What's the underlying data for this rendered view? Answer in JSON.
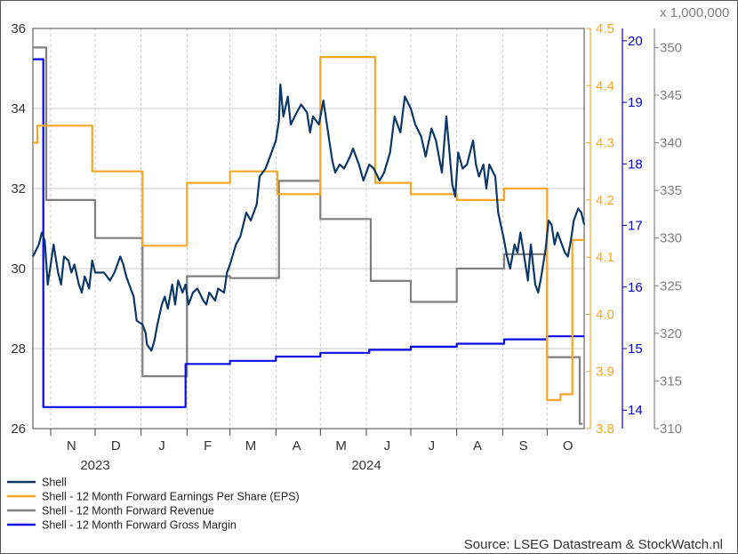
{
  "chart_data": {
    "type": "line",
    "source": "Source: LSEG Datastream & StockWatch.nl",
    "axis_multiplier": "x 1,000,000",
    "x_month_labels": [
      "N",
      "D",
      "J",
      "F",
      "M",
      "A",
      "M",
      "J",
      "J",
      "A",
      "S",
      "O"
    ],
    "x_year_labels": [
      "2023",
      "2024"
    ],
    "x_range": [
      "2023-10-20",
      "2024-10-26"
    ],
    "axes": {
      "price": {
        "min": 26,
        "max": 36,
        "ticks": [
          26,
          28,
          30,
          32,
          34,
          36
        ],
        "color": "#333333"
      },
      "eps": {
        "min": 3.8,
        "max": 4.5,
        "ticks": [
          "3.8",
          "3.9",
          "4.0",
          "4.1",
          "4.2",
          "4.3",
          "4.4",
          "4.5"
        ],
        "color": "#f5a623"
      },
      "margin": {
        "min": 13.7,
        "max": 20.2,
        "ticks": [
          14,
          15,
          16,
          17,
          18,
          19,
          20
        ],
        "color": "#0000cc"
      },
      "revenue": {
        "min": 310,
        "max": 352,
        "ticks": [
          310,
          315,
          320,
          325,
          330,
          335,
          340,
          345,
          350
        ],
        "color": "#7f7f7f"
      }
    },
    "series": [
      {
        "name": "Shell",
        "color": "#0c3766",
        "axis": "price",
        "points": [
          [
            "2023-10-20",
            30.3
          ],
          [
            "2023-10-24",
            30.6
          ],
          [
            "2023-10-26",
            30.9
          ],
          [
            "2023-10-28",
            30.7
          ],
          [
            "2023-10-30",
            29.6
          ],
          [
            "2023-11-01",
            30.1
          ],
          [
            "2023-11-03",
            30.6
          ],
          [
            "2023-11-06",
            29.9
          ],
          [
            "2023-11-08",
            29.6
          ],
          [
            "2023-11-10",
            30.3
          ],
          [
            "2023-11-13",
            30.2
          ],
          [
            "2023-11-15",
            29.9
          ],
          [
            "2023-11-17",
            30.1
          ],
          [
            "2023-11-20",
            29.6
          ],
          [
            "2023-11-22",
            29.4
          ],
          [
            "2023-11-24",
            29.8
          ],
          [
            "2023-11-27",
            29.5
          ],
          [
            "2023-11-29",
            30.2
          ],
          [
            "2023-12-01",
            29.9
          ],
          [
            "2023-12-04",
            29.9
          ],
          [
            "2023-12-07",
            29.9
          ],
          [
            "2023-12-11",
            29.7
          ],
          [
            "2023-12-14",
            29.9
          ],
          [
            "2023-12-18",
            30.3
          ],
          [
            "2023-12-20",
            30.1
          ],
          [
            "2023-12-22",
            29.8
          ],
          [
            "2023-12-27",
            29.3
          ],
          [
            "2023-12-29",
            28.7
          ],
          [
            "2024-01-02",
            28.6
          ],
          [
            "2024-01-04",
            28.4
          ],
          [
            "2024-01-05",
            28.1
          ],
          [
            "2024-01-08",
            27.95
          ],
          [
            "2024-01-10",
            28.2
          ],
          [
            "2024-01-12",
            28.6
          ],
          [
            "2024-01-15",
            29.1
          ],
          [
            "2024-01-17",
            29.3
          ],
          [
            "2024-01-19",
            29.0
          ],
          [
            "2024-01-22",
            29.6
          ],
          [
            "2024-01-24",
            29.1
          ],
          [
            "2024-01-26",
            29.7
          ],
          [
            "2024-01-29",
            29.4
          ],
          [
            "2024-01-31",
            29.6
          ],
          [
            "2024-02-02",
            29.1
          ],
          [
            "2024-02-05",
            29.4
          ],
          [
            "2024-02-08",
            29.5
          ],
          [
            "2024-02-12",
            29.2
          ],
          [
            "2024-02-14",
            29.1
          ],
          [
            "2024-02-16",
            29.4
          ],
          [
            "2024-02-20",
            29.2
          ],
          [
            "2024-02-22",
            29.5
          ],
          [
            "2024-02-26",
            29.4
          ],
          [
            "2024-02-28",
            29.9
          ],
          [
            "2024-03-01",
            30.1
          ],
          [
            "2024-03-05",
            30.6
          ],
          [
            "2024-03-08",
            30.8
          ],
          [
            "2024-03-12",
            31.4
          ],
          [
            "2024-03-15",
            31.2
          ],
          [
            "2024-03-19",
            31.6
          ],
          [
            "2024-03-21",
            32.3
          ],
          [
            "2024-03-25",
            32.5
          ],
          [
            "2024-03-28",
            32.8
          ],
          [
            "2024-04-01",
            33.2
          ],
          [
            "2024-04-03",
            33.7
          ],
          [
            "2024-04-04",
            34.6
          ],
          [
            "2024-04-06",
            33.8
          ],
          [
            "2024-04-09",
            34.3
          ],
          [
            "2024-04-11",
            33.6
          ],
          [
            "2024-04-15",
            33.9
          ],
          [
            "2024-04-18",
            34.1
          ],
          [
            "2024-04-22",
            33.9
          ],
          [
            "2024-04-24",
            33.4
          ],
          [
            "2024-04-26",
            33.8
          ],
          [
            "2024-04-30",
            33.6
          ],
          [
            "2024-05-03",
            34.2
          ],
          [
            "2024-05-05",
            33.7
          ],
          [
            "2024-05-07",
            33.2
          ],
          [
            "2024-05-09",
            32.7
          ],
          [
            "2024-05-11",
            32.4
          ],
          [
            "2024-05-14",
            32.6
          ],
          [
            "2024-05-17",
            32.5
          ],
          [
            "2024-05-21",
            32.8
          ],
          [
            "2024-05-23",
            33.0
          ],
          [
            "2024-05-27",
            32.6
          ],
          [
            "2024-05-30",
            32.2
          ],
          [
            "2024-06-03",
            32.6
          ],
          [
            "2024-06-06",
            32.5
          ],
          [
            "2024-06-10",
            32.2
          ],
          [
            "2024-06-13",
            32.4
          ],
          [
            "2024-06-17",
            32.9
          ],
          [
            "2024-06-20",
            33.8
          ],
          [
            "2024-06-24",
            33.4
          ],
          [
            "2024-06-27",
            34.3
          ],
          [
            "2024-07-01",
            34.0
          ],
          [
            "2024-07-04",
            33.6
          ],
          [
            "2024-07-08",
            33.3
          ],
          [
            "2024-07-11",
            32.8
          ],
          [
            "2024-07-15",
            33.5
          ],
          [
            "2024-07-18",
            33.2
          ],
          [
            "2024-07-22",
            32.4
          ],
          [
            "2024-07-25",
            33.8
          ],
          [
            "2024-07-29",
            32.1
          ],
          [
            "2024-07-31",
            31.8
          ],
          [
            "2024-08-02",
            32.9
          ],
          [
            "2024-08-05",
            32.5
          ],
          [
            "2024-08-08",
            32.6
          ],
          [
            "2024-08-12",
            33.2
          ],
          [
            "2024-08-14",
            32.6
          ],
          [
            "2024-08-16",
            32.3
          ],
          [
            "2024-08-19",
            32.6
          ],
          [
            "2024-08-21",
            32.0
          ],
          [
            "2024-08-23",
            32.6
          ],
          [
            "2024-08-27",
            32.3
          ],
          [
            "2024-08-29",
            31.4
          ],
          [
            "2024-09-02",
            30.7
          ],
          [
            "2024-09-04",
            30.3
          ],
          [
            "2024-09-06",
            30.0
          ],
          [
            "2024-09-09",
            30.6
          ],
          [
            "2024-09-11",
            30.4
          ],
          [
            "2024-09-13",
            30.9
          ],
          [
            "2024-09-16",
            30.2
          ],
          [
            "2024-09-18",
            29.7
          ],
          [
            "2024-09-20",
            30.6
          ],
          [
            "2024-09-23",
            29.6
          ],
          [
            "2024-09-25",
            29.4
          ],
          [
            "2024-09-27",
            29.8
          ],
          [
            "2024-09-30",
            30.5
          ],
          [
            "2024-10-02",
            31.2
          ],
          [
            "2024-10-04",
            31.1
          ],
          [
            "2024-10-06",
            30.6
          ],
          [
            "2024-10-08",
            30.9
          ],
          [
            "2024-10-10",
            30.7
          ],
          [
            "2024-10-13",
            30.4
          ],
          [
            "2024-10-15",
            30.3
          ],
          [
            "2024-10-17",
            30.7
          ],
          [
            "2024-10-19",
            31.2
          ],
          [
            "2024-10-22",
            31.5
          ],
          [
            "2024-10-24",
            31.4
          ],
          [
            "2024-10-26",
            31.1
          ]
        ]
      },
      {
        "name": "Shell - 12 Month Forward Earnings Per Share (EPS)",
        "color": "#f5a623",
        "axis": "eps",
        "points": [
          [
            "2023-10-20",
            4.3
          ],
          [
            "2023-10-23",
            4.3
          ],
          [
            "2023-10-23",
            4.33
          ],
          [
            "2023-11-29",
            4.33
          ],
          [
            "2023-11-29",
            4.25
          ],
          [
            "2024-01-02",
            4.25
          ],
          [
            "2024-01-02",
            4.12
          ],
          [
            "2024-02-01",
            4.12
          ],
          [
            "2024-02-01",
            4.23
          ],
          [
            "2024-03-01",
            4.23
          ],
          [
            "2024-03-01",
            4.25
          ],
          [
            "2024-04-02",
            4.25
          ],
          [
            "2024-04-02",
            4.21
          ],
          [
            "2024-05-01",
            4.21
          ],
          [
            "2024-05-01",
            4.45
          ],
          [
            "2024-06-07",
            4.45
          ],
          [
            "2024-06-07",
            4.23
          ],
          [
            "2024-07-01",
            4.23
          ],
          [
            "2024-07-01",
            4.21
          ],
          [
            "2024-08-01",
            4.21
          ],
          [
            "2024-08-01",
            4.2
          ],
          [
            "2024-09-02",
            4.2
          ],
          [
            "2024-09-02",
            4.22
          ],
          [
            "2024-10-01",
            4.22
          ],
          [
            "2024-10-01",
            3.85
          ],
          [
            "2024-10-10",
            3.85
          ],
          [
            "2024-10-10",
            3.86
          ],
          [
            "2024-10-18",
            3.86
          ],
          [
            "2024-10-18",
            4.13
          ],
          [
            "2024-10-26",
            4.13
          ]
        ]
      },
      {
        "name": "Shell - 12 Month Forward Revenue",
        "color": "#7f7f7f",
        "axis": "revenue",
        "points": [
          [
            "2023-10-20",
            350
          ],
          [
            "2023-10-29",
            350
          ],
          [
            "2023-10-29",
            334
          ],
          [
            "2023-12-01",
            334
          ],
          [
            "2023-12-01",
            330
          ],
          [
            "2024-01-02",
            330
          ],
          [
            "2024-01-02",
            315.5
          ],
          [
            "2024-02-01",
            315.5
          ],
          [
            "2024-02-01",
            326
          ],
          [
            "2024-03-01",
            326
          ],
          [
            "2024-03-01",
            325.8
          ],
          [
            "2024-04-03",
            325.8
          ],
          [
            "2024-04-03",
            336
          ],
          [
            "2024-05-01",
            336
          ],
          [
            "2024-05-01",
            332
          ],
          [
            "2024-06-04",
            332
          ],
          [
            "2024-06-04",
            325.5
          ],
          [
            "2024-07-01",
            325.5
          ],
          [
            "2024-07-01",
            323.3
          ],
          [
            "2024-08-01",
            323.3
          ],
          [
            "2024-08-01",
            326.8
          ],
          [
            "2024-09-02",
            326.8
          ],
          [
            "2024-09-02",
            328.3
          ],
          [
            "2024-10-01",
            328.3
          ],
          [
            "2024-10-01",
            317.5
          ],
          [
            "2024-10-23",
            317.5
          ],
          [
            "2024-10-23",
            310.5
          ],
          [
            "2024-10-25",
            310.5
          ]
        ]
      },
      {
        "name": "Shell - 12 Month Forward Gross Margin",
        "color": "#0a0ae6",
        "axis": "margin",
        "points": [
          [
            "2023-10-20",
            19.7
          ],
          [
            "2023-10-27",
            19.7
          ],
          [
            "2023-10-27",
            14.05
          ],
          [
            "2024-01-31",
            14.05
          ],
          [
            "2024-01-31",
            14.75
          ],
          [
            "2024-03-01",
            14.75
          ],
          [
            "2024-03-01",
            14.8
          ],
          [
            "2024-04-01",
            14.8
          ],
          [
            "2024-04-01",
            14.87
          ],
          [
            "2024-05-01",
            14.87
          ],
          [
            "2024-05-01",
            14.93
          ],
          [
            "2024-06-03",
            14.93
          ],
          [
            "2024-06-03",
            14.98
          ],
          [
            "2024-07-01",
            14.98
          ],
          [
            "2024-07-01",
            15.03
          ],
          [
            "2024-08-01",
            15.03
          ],
          [
            "2024-08-01",
            15.08
          ],
          [
            "2024-09-02",
            15.08
          ],
          [
            "2024-09-02",
            15.15
          ],
          [
            "2024-10-01",
            15.15
          ],
          [
            "2024-10-01",
            15.2
          ],
          [
            "2024-10-26",
            15.2
          ]
        ]
      }
    ]
  }
}
